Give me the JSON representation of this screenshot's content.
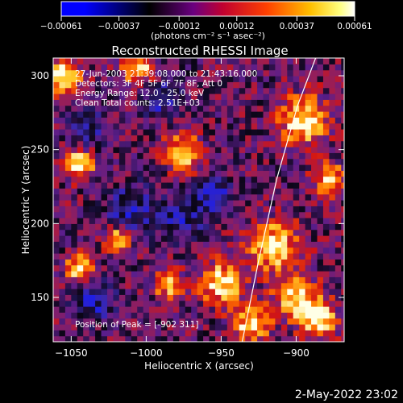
{
  "chart_data": {
    "type": "heatmap",
    "title": "Reconstructed RHESSI Image",
    "xlabel": "Heliocentric X (arcsec)",
    "ylabel": "Heliocentric Y (arcsec)",
    "xlim": [
      -1062,
      -868
    ],
    "ylim": [
      120,
      312
    ],
    "x_ticks": [
      "−1050",
      "−1000",
      "−950",
      "−900"
    ],
    "x_tick_values": [
      -1050,
      -1000,
      -950,
      -900
    ],
    "y_ticks": [
      "150",
      "200",
      "250",
      "300"
    ],
    "y_tick_values": [
      150,
      200,
      250,
      300
    ],
    "colorbar": {
      "ticks": [
        "−0.00061",
        "−0.00037",
        "−0.00012",
        "0.00012",
        "0.00037",
        "0.00061"
      ],
      "tick_values": [
        -0.00061,
        -0.00037,
        -0.00012,
        0.00012,
        0.00037,
        0.00061
      ],
      "range": [
        -0.00061,
        0.00061
      ],
      "unit_label": "(photons cm⁻² s⁻¹ asec⁻²)",
      "colormap": [
        "#0000ff",
        "#000000",
        "#8b008b",
        "#ff0000",
        "#ff8000",
        "#ffff00",
        "#ffffff"
      ]
    },
    "annotations": [
      "27-Jun-2003 21:39:08.000 to 21:43:16.000",
      "Detectors: 3F 4F 5F 6F 7F 8F, Att 0",
      "Energy Range: 12.0 - 25.0 keV",
      "Clean     Total counts: 2.51E+03"
    ],
    "peak_label": "Position of Peak = [-902 311]",
    "limb_curve": [
      {
        "x": -936,
        "y": 120
      },
      {
        "x": -925,
        "y": 175
      },
      {
        "x": -913,
        "y": 230
      },
      {
        "x": -899,
        "y": 280
      },
      {
        "x": -887,
        "y": 312
      }
    ],
    "hot_regions": [
      {
        "x": -1055,
        "y": 300,
        "r": 12
      },
      {
        "x": -1005,
        "y": 305,
        "r": 10
      },
      {
        "x": -1045,
        "y": 240,
        "r": 10
      },
      {
        "x": -975,
        "y": 248,
        "r": 12
      },
      {
        "x": -1020,
        "y": 190,
        "r": 8
      },
      {
        "x": -985,
        "y": 160,
        "r": 9
      },
      {
        "x": -950,
        "y": 160,
        "r": 14
      },
      {
        "x": -915,
        "y": 185,
        "r": 16
      },
      {
        "x": -900,
        "y": 150,
        "r": 14
      },
      {
        "x": -895,
        "y": 270,
        "r": 16
      },
      {
        "x": -878,
        "y": 230,
        "r": 10
      },
      {
        "x": -1045,
        "y": 170,
        "r": 9
      },
      {
        "x": -930,
        "y": 132,
        "r": 12
      },
      {
        "x": -885,
        "y": 135,
        "r": 12
      }
    ],
    "cold_regions": [
      {
        "x": -1035,
        "y": 148,
        "r": 14
      },
      {
        "x": -1010,
        "y": 210,
        "r": 16
      },
      {
        "x": -975,
        "y": 205,
        "r": 14
      },
      {
        "x": -1040,
        "y": 265,
        "r": 12
      },
      {
        "x": -990,
        "y": 285,
        "r": 12
      },
      {
        "x": -955,
        "y": 220,
        "r": 12
      }
    ]
  },
  "footer": {
    "date": "2-May-2022 23:02"
  }
}
